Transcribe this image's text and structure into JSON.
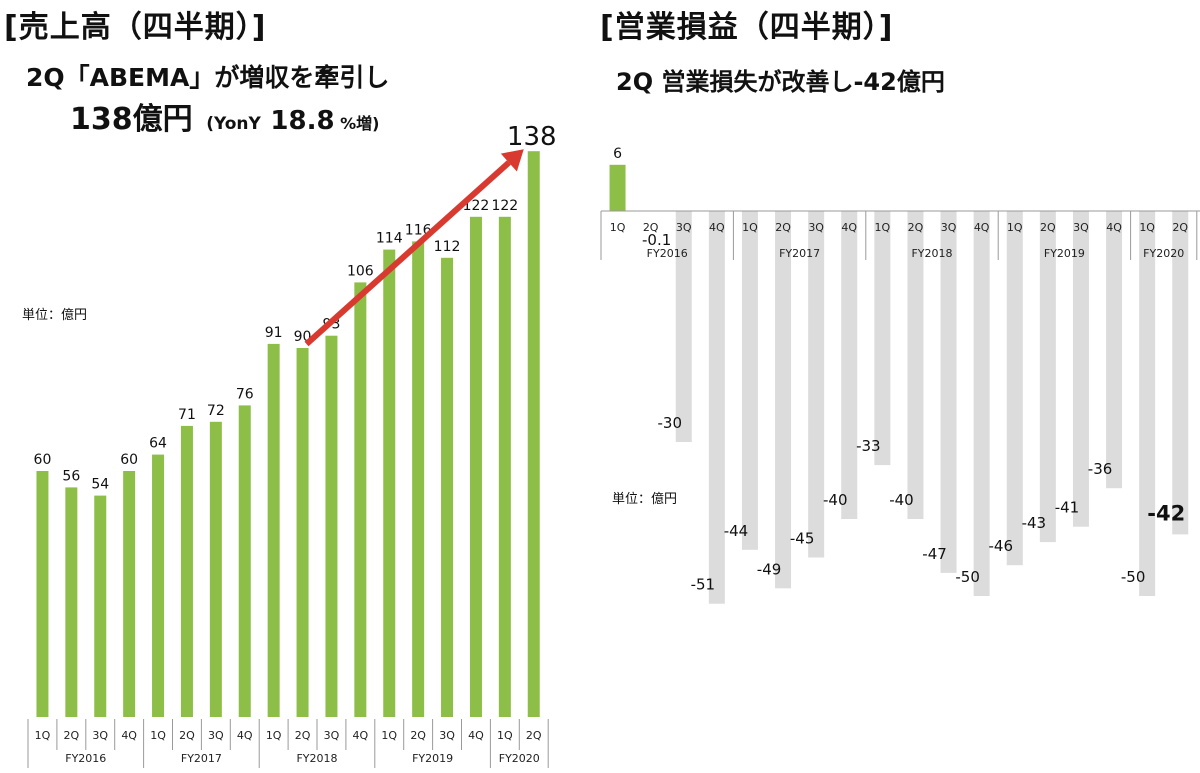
{
  "left": {
    "title": "[売上高（四半期）]",
    "headline1": "2Q「ABEMA」が増収を牽引し",
    "headline2_value": "138億円",
    "headline2_paren_open": "(YonY",
    "headline2_growth": "18.8",
    "headline2_growth_unit": "%増)",
    "unit_label": "単位：億円"
  },
  "right": {
    "title": "[営業損益（四半期）]",
    "headline": "2Q 営業損失が改善し-42億円",
    "unit_label": "単位：億円"
  },
  "colors": {
    "green": "#8DBE47",
    "gray": "#DCDCDC",
    "arrow": "#D93A30",
    "axis": "#9A9A9A"
  },
  "chart_data": [
    {
      "type": "bar",
      "title": "[売上高（四半期）]",
      "ylabel": "単位：億円",
      "quarters": [
        "1Q",
        "2Q",
        "3Q",
        "4Q",
        "1Q",
        "2Q",
        "3Q",
        "4Q",
        "1Q",
        "2Q",
        "3Q",
        "4Q",
        "1Q",
        "2Q",
        "3Q",
        "4Q",
        "1Q",
        "2Q"
      ],
      "groups": [
        {
          "label": "FY2016",
          "count": 4
        },
        {
          "label": "FY2017",
          "count": 4
        },
        {
          "label": "FY2018",
          "count": 4
        },
        {
          "label": "FY2019",
          "count": 4
        },
        {
          "label": "FY2020",
          "count": 2
        }
      ],
      "values": [
        60,
        56,
        54,
        60,
        64,
        71,
        72,
        76,
        91,
        90,
        93,
        106,
        114,
        116,
        112,
        122,
        122,
        138
      ],
      "ylim": [
        0,
        140
      ],
      "annotation": {
        "text": "138",
        "type": "arrow",
        "from_index": 9,
        "to_index": 17
      }
    },
    {
      "type": "bar",
      "title": "[営業損益（四半期）]",
      "ylabel": "単位：億円",
      "quarters": [
        "1Q",
        "2Q",
        "3Q",
        "4Q",
        "1Q",
        "2Q",
        "3Q",
        "4Q",
        "1Q",
        "2Q",
        "3Q",
        "4Q",
        "1Q",
        "2Q",
        "3Q",
        "4Q",
        "1Q",
        "2Q"
      ],
      "groups": [
        {
          "label": "FY2016",
          "count": 4
        },
        {
          "label": "FY2017",
          "count": 4
        },
        {
          "label": "FY2018",
          "count": 4
        },
        {
          "label": "FY2019",
          "count": 4
        },
        {
          "label": "FY2020",
          "count": 2
        }
      ],
      "values": [
        6,
        -0.1,
        -30,
        -51,
        -44,
        -49,
        -45,
        -40,
        -33,
        -40,
        -47,
        -50,
        -46,
        -43,
        -41,
        -36,
        -50,
        -42
      ],
      "ylim": [
        -55,
        10
      ]
    }
  ]
}
